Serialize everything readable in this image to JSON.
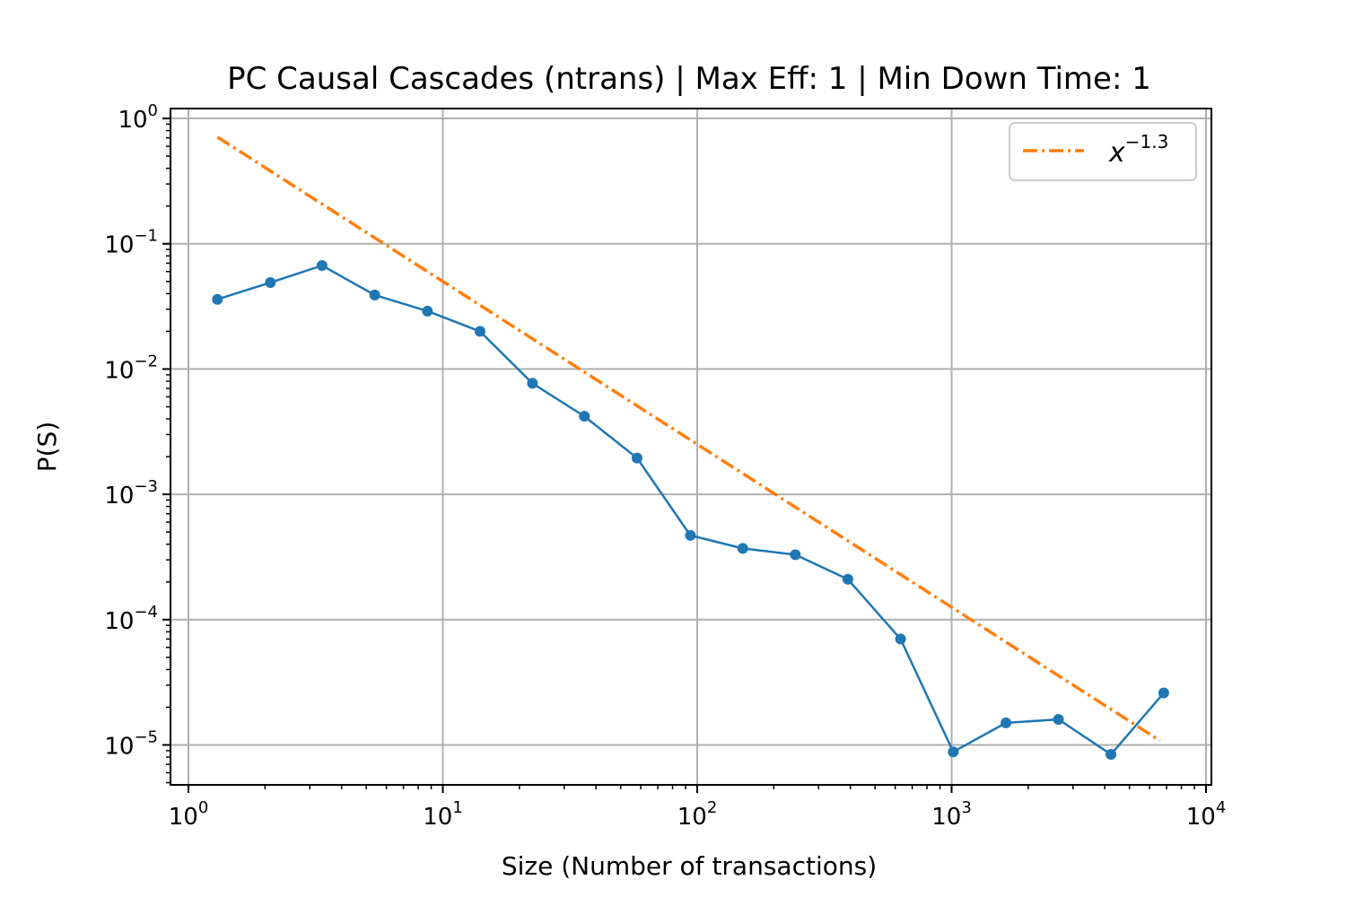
{
  "chart_data": {
    "type": "line",
    "title": "PC Causal Cascades (ntrans) | Max Eff: 1 | Min Down Time: 1",
    "xlabel": "Size (Number of transactions)",
    "ylabel": "P(S)",
    "xscale": "log",
    "yscale": "log",
    "xlim": [
      0.85,
      10500
    ],
    "ylim": [
      4.8e-06,
      1.2
    ],
    "grid": true,
    "legend_position": "top-right",
    "x_ticks": [
      {
        "value": 1,
        "base": "10",
        "exp": "0"
      },
      {
        "value": 10,
        "base": "10",
        "exp": "1"
      },
      {
        "value": 100,
        "base": "10",
        "exp": "2"
      },
      {
        "value": 1000,
        "base": "10",
        "exp": "3"
      },
      {
        "value": 10000,
        "base": "10",
        "exp": "4"
      }
    ],
    "y_ticks": [
      {
        "value": 1,
        "base": "10",
        "exp": "0"
      },
      {
        "value": 0.1,
        "base": "10",
        "exp": "−1"
      },
      {
        "value": 0.01,
        "base": "10",
        "exp": "−2"
      },
      {
        "value": 0.001,
        "base": "10",
        "exp": "−3"
      },
      {
        "value": 0.0001,
        "base": "10",
        "exp": "−4"
      },
      {
        "value": 1e-05,
        "base": "10",
        "exp": "−5"
      }
    ],
    "series": [
      {
        "color": "#1f77b4",
        "style": "solid",
        "marker": "circle",
        "x": [
          1.3,
          2.1,
          3.35,
          5.4,
          8.7,
          14,
          22.5,
          36,
          58,
          94,
          151,
          243,
          391,
          630,
          1015,
          1635,
          2630,
          4230,
          6820
        ],
        "y": [
          0.036,
          0.049,
          0.067,
          0.039,
          0.029,
          0.02,
          0.0077,
          0.0042,
          0.00195,
          0.00047,
          0.00037,
          0.00033,
          0.00021,
          7e-05,
          8.8e-06,
          1.5e-05,
          1.6e-05,
          8.4e-06,
          2.6e-05
        ]
      },
      {
        "name_base": "x",
        "name_exp": "−1.3",
        "color": "#ff7f0e",
        "style": "dashdot",
        "x": [
          1.3,
          6600
        ],
        "y": [
          0.71,
          1.08e-05
        ]
      }
    ]
  }
}
